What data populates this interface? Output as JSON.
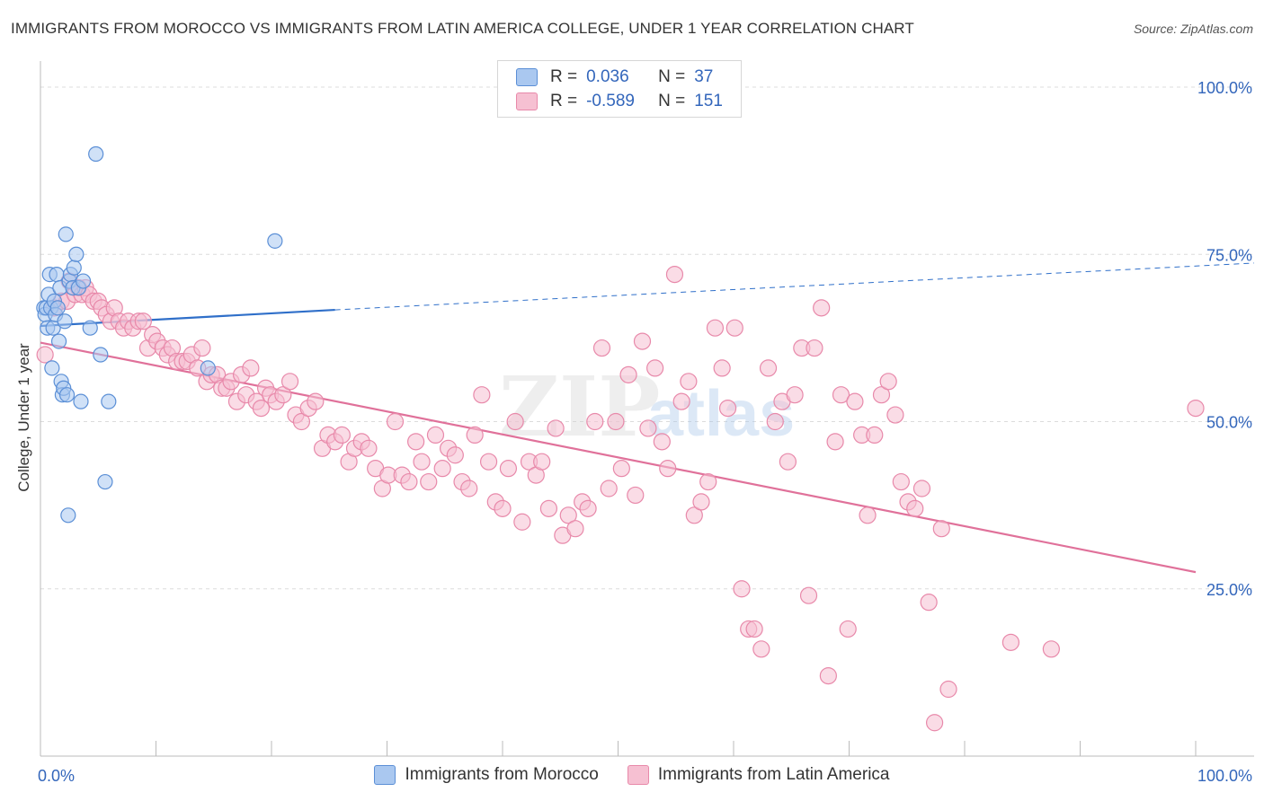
{
  "title": "IMMIGRANTS FROM MOROCCO VS IMMIGRANTS FROM LATIN AMERICA COLLEGE, UNDER 1 YEAR CORRELATION CHART",
  "source": "Source: ZipAtlas.com",
  "watermark": {
    "zip": "ZIP",
    "atlas": "atlas"
  },
  "legend": {
    "r_label": "R =",
    "n_label": "N =",
    "morocco": {
      "r": "0.036",
      "n": "37"
    },
    "latin": {
      "r": "-0.589",
      "n": "151"
    }
  },
  "colors": {
    "morocco_fill": "#aac8f0",
    "morocco_stroke": "#5b8fd6",
    "morocco_line": "#2f6fc9",
    "latin_fill": "#f6c0d2",
    "latin_stroke": "#e889aa",
    "latin_line": "#e0719a",
    "axis_text": "#3366bb",
    "grid": "#dcdcdc"
  },
  "chart_data": {
    "type": "scatter",
    "ylabel": "College, Under 1 year",
    "xlim": [
      0,
      100
    ],
    "ylim": [
      0,
      100
    ],
    "x_ticks": [
      "0.0%",
      "100.0%"
    ],
    "y_ticks": [
      {
        "value": 25,
        "label": "25.0%"
      },
      {
        "value": 50,
        "label": "50.0%"
      },
      {
        "value": 75,
        "label": "75.0%"
      },
      {
        "value": 100,
        "label": "100.0%"
      }
    ],
    "grid": "horizontal dashed",
    "legend_position": "top-center",
    "series": [
      {
        "name": "Immigrants from Morocco",
        "trend": {
          "x0": 0,
          "y0": 64.3,
          "x1": 25.5,
          "y1": 66.7,
          "x_dash_end": 100,
          "y_dash_end": 73.7
        },
        "points": [
          [
            0.3,
            67
          ],
          [
            0.4,
            66
          ],
          [
            0.5,
            67
          ],
          [
            0.6,
            64
          ],
          [
            0.7,
            69
          ],
          [
            0.8,
            72
          ],
          [
            0.9,
            67
          ],
          [
            1.0,
            58
          ],
          [
            1.1,
            64
          ],
          [
            1.2,
            68
          ],
          [
            1.3,
            66
          ],
          [
            1.4,
            72
          ],
          [
            1.5,
            67
          ],
          [
            1.6,
            62
          ],
          [
            1.7,
            70
          ],
          [
            1.8,
            56
          ],
          [
            1.9,
            54
          ],
          [
            2.0,
            55
          ],
          [
            2.1,
            65
          ],
          [
            2.2,
            78
          ],
          [
            2.3,
            54
          ],
          [
            2.4,
            36
          ],
          [
            2.5,
            71
          ],
          [
            2.6,
            72
          ],
          [
            2.8,
            70
          ],
          [
            2.9,
            73
          ],
          [
            3.1,
            75
          ],
          [
            3.3,
            70
          ],
          [
            3.5,
            53
          ],
          [
            3.7,
            71
          ],
          [
            4.3,
            64
          ],
          [
            4.8,
            90
          ],
          [
            5.2,
            60
          ],
          [
            5.6,
            41
          ],
          [
            5.9,
            53
          ],
          [
            14.5,
            58
          ],
          [
            20.3,
            77
          ]
        ]
      },
      {
        "name": "Immigrants from Latin America",
        "trend": {
          "x0": 0,
          "y0": 61.8,
          "x1": 100,
          "y1": 27.5
        },
        "points": [
          [
            0.4,
            60
          ],
          [
            1.2,
            67
          ],
          [
            1.8,
            68
          ],
          [
            2.3,
            68
          ],
          [
            2.5,
            71
          ],
          [
            3.0,
            69
          ],
          [
            3.3,
            70
          ],
          [
            3.6,
            69
          ],
          [
            3.9,
            70
          ],
          [
            4.2,
            69
          ],
          [
            4.6,
            68
          ],
          [
            5.0,
            68
          ],
          [
            5.3,
            67
          ],
          [
            5.7,
            66
          ],
          [
            6.1,
            65
          ],
          [
            6.4,
            67
          ],
          [
            6.8,
            65
          ],
          [
            7.2,
            64
          ],
          [
            7.6,
            65
          ],
          [
            8.0,
            64
          ],
          [
            8.5,
            65
          ],
          [
            8.9,
            65
          ],
          [
            9.3,
            61
          ],
          [
            9.7,
            63
          ],
          [
            10.1,
            62
          ],
          [
            10.6,
            61
          ],
          [
            11.0,
            60
          ],
          [
            11.4,
            61
          ],
          [
            11.8,
            59
          ],
          [
            12.3,
            59
          ],
          [
            12.7,
            59
          ],
          [
            13.1,
            60
          ],
          [
            13.6,
            58
          ],
          [
            14.0,
            61
          ],
          [
            14.4,
            56
          ],
          [
            14.8,
            57
          ],
          [
            15.3,
            57
          ],
          [
            15.7,
            55
          ],
          [
            16.1,
            55
          ],
          [
            16.5,
            56
          ],
          [
            17.0,
            53
          ],
          [
            17.4,
            57
          ],
          [
            17.8,
            54
          ],
          [
            18.2,
            58
          ],
          [
            18.7,
            53
          ],
          [
            19.1,
            52
          ],
          [
            19.5,
            55
          ],
          [
            19.9,
            54
          ],
          [
            20.4,
            53
          ],
          [
            21.0,
            54
          ],
          [
            21.6,
            56
          ],
          [
            22.1,
            51
          ],
          [
            22.6,
            50
          ],
          [
            23.2,
            52
          ],
          [
            23.8,
            53
          ],
          [
            24.4,
            46
          ],
          [
            24.9,
            48
          ],
          [
            25.5,
            47
          ],
          [
            26.1,
            48
          ],
          [
            26.7,
            44
          ],
          [
            27.2,
            46
          ],
          [
            27.8,
            47
          ],
          [
            28.4,
            46
          ],
          [
            29.0,
            43
          ],
          [
            29.6,
            40
          ],
          [
            30.1,
            42
          ],
          [
            30.7,
            50
          ],
          [
            31.3,
            42
          ],
          [
            31.9,
            41
          ],
          [
            32.5,
            47
          ],
          [
            33.0,
            44
          ],
          [
            33.6,
            41
          ],
          [
            34.2,
            48
          ],
          [
            34.8,
            43
          ],
          [
            35.3,
            46
          ],
          [
            35.9,
            45
          ],
          [
            36.5,
            41
          ],
          [
            37.1,
            40
          ],
          [
            37.6,
            48
          ],
          [
            38.2,
            54
          ],
          [
            38.8,
            44
          ],
          [
            39.4,
            38
          ],
          [
            40.0,
            37
          ],
          [
            40.5,
            43
          ],
          [
            41.1,
            50
          ],
          [
            41.7,
            35
          ],
          [
            42.3,
            44
          ],
          [
            42.9,
            42
          ],
          [
            43.4,
            44
          ],
          [
            44.0,
            37
          ],
          [
            44.6,
            49
          ],
          [
            45.2,
            33
          ],
          [
            45.7,
            36
          ],
          [
            46.3,
            34
          ],
          [
            46.9,
            38
          ],
          [
            47.4,
            37
          ],
          [
            48.0,
            50
          ],
          [
            48.6,
            61
          ],
          [
            49.2,
            40
          ],
          [
            49.8,
            50
          ],
          [
            50.3,
            43
          ],
          [
            50.9,
            57
          ],
          [
            51.5,
            39
          ],
          [
            52.1,
            62
          ],
          [
            52.6,
            49
          ],
          [
            53.2,
            58
          ],
          [
            53.8,
            47
          ],
          [
            54.3,
            43
          ],
          [
            54.9,
            72
          ],
          [
            55.5,
            53
          ],
          [
            56.1,
            56
          ],
          [
            56.6,
            36
          ],
          [
            57.2,
            38
          ],
          [
            57.8,
            41
          ],
          [
            58.4,
            64
          ],
          [
            59.0,
            58
          ],
          [
            59.5,
            52
          ],
          [
            60.1,
            64
          ],
          [
            60.7,
            25
          ],
          [
            61.3,
            19
          ],
          [
            61.8,
            19
          ],
          [
            62.4,
            16
          ],
          [
            63.0,
            58
          ],
          [
            63.6,
            50
          ],
          [
            64.2,
            53
          ],
          [
            64.7,
            44
          ],
          [
            65.3,
            54
          ],
          [
            65.9,
            61
          ],
          [
            66.5,
            24
          ],
          [
            67.0,
            61
          ],
          [
            67.6,
            67
          ],
          [
            68.2,
            12
          ],
          [
            68.8,
            47
          ],
          [
            69.3,
            54
          ],
          [
            69.9,
            19
          ],
          [
            70.5,
            53
          ],
          [
            71.1,
            48
          ],
          [
            71.6,
            36
          ],
          [
            72.2,
            48
          ],
          [
            72.8,
            54
          ],
          [
            73.4,
            56
          ],
          [
            74.0,
            51
          ],
          [
            74.5,
            41
          ],
          [
            75.1,
            38
          ],
          [
            75.7,
            37
          ],
          [
            76.3,
            40
          ],
          [
            76.9,
            23
          ],
          [
            77.4,
            5
          ],
          [
            78.0,
            34
          ],
          [
            78.6,
            10
          ],
          [
            84.0,
            17
          ],
          [
            87.5,
            16
          ],
          [
            100.0,
            52
          ]
        ]
      }
    ]
  },
  "bottom_legend": [
    "Immigrants from Morocco",
    "Immigrants from Latin America"
  ]
}
